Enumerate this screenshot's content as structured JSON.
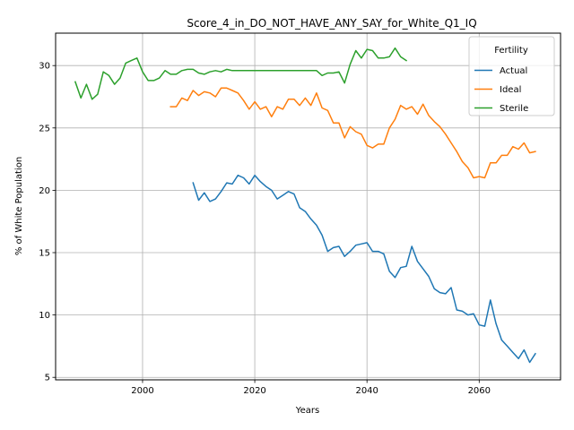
{
  "chart_data": {
    "type": "line",
    "title": "Score_4_in_DO_NOT_HAVE_ANY_SAY_for_White_Q1_IQ",
    "xlabel": "Years",
    "ylabel": "% of White Population",
    "xlim": [
      1984.5,
      2074.5
    ],
    "ylim": [
      4.8,
      32.6
    ],
    "xticks": [
      2000,
      2020,
      2040,
      2060
    ],
    "yticks": [
      5,
      10,
      15,
      20,
      25,
      30
    ],
    "grid": true,
    "legend": {
      "title": "Fertility",
      "placement": "top-right"
    },
    "series": [
      {
        "name": "Actual",
        "color": "#1f77b4",
        "x": [
          2009,
          2010,
          2011,
          2012,
          2013,
          2014,
          2015,
          2016,
          2017,
          2018,
          2019,
          2020,
          2021,
          2022,
          2023,
          2024,
          2025,
          2026,
          2027,
          2028,
          2029,
          2030,
          2031,
          2032,
          2033,
          2034,
          2035,
          2036,
          2037,
          2038,
          2039,
          2040,
          2041,
          2042,
          2043,
          2044,
          2045,
          2046,
          2047,
          2048,
          2049,
          2050,
          2051,
          2052,
          2053,
          2054,
          2055,
          2056,
          2057,
          2058,
          2059,
          2060,
          2061,
          2062,
          2063,
          2064,
          2065,
          2066,
          2067,
          2068,
          2069,
          2070
        ],
        "y": [
          20.6,
          19.2,
          19.8,
          19.1,
          19.3,
          19.9,
          20.6,
          20.5,
          21.2,
          21.0,
          20.5,
          21.2,
          20.7,
          20.3,
          20.0,
          19.3,
          19.6,
          19.9,
          19.7,
          18.6,
          18.3,
          17.7,
          17.2,
          16.4,
          15.1,
          15.4,
          15.5,
          14.7,
          15.1,
          15.6,
          15.7,
          15.8,
          15.1,
          15.1,
          14.9,
          13.5,
          13.0,
          13.8,
          13.9,
          15.5,
          14.3,
          13.7,
          13.1,
          12.1,
          11.8,
          11.7,
          12.2,
          10.4,
          10.3,
          10.0,
          10.1,
          9.2,
          9.1,
          11.2,
          9.3,
          8.0,
          7.5,
          7.0,
          6.5,
          7.2,
          6.2,
          6.9
        ]
      },
      {
        "name": "Ideal",
        "color": "#ff7f0e",
        "x": [
          2005,
          2006,
          2007,
          2008,
          2009,
          2010,
          2011,
          2012,
          2013,
          2014,
          2015,
          2016,
          2017,
          2018,
          2019,
          2020,
          2021,
          2022,
          2023,
          2024,
          2025,
          2026,
          2027,
          2028,
          2029,
          2030,
          2031,
          2032,
          2033,
          2034,
          2035,
          2036,
          2037,
          2038,
          2039,
          2040,
          2041,
          2042,
          2043,
          2044,
          2045,
          2046,
          2047,
          2048,
          2049,
          2050,
          2051,
          2052,
          2053,
          2054,
          2055,
          2056,
          2057,
          2058,
          2059,
          2060,
          2061,
          2062,
          2063,
          2064,
          2065,
          2066,
          2067,
          2068,
          2069,
          2070
        ],
        "y": [
          26.7,
          26.7,
          27.4,
          27.2,
          28.0,
          27.6,
          27.9,
          27.8,
          27.5,
          28.2,
          28.2,
          28.0,
          27.8,
          27.2,
          26.5,
          27.1,
          26.5,
          26.7,
          25.9,
          26.7,
          26.5,
          27.3,
          27.3,
          26.8,
          27.4,
          26.8,
          27.8,
          26.6,
          26.4,
          25.4,
          25.4,
          24.2,
          25.1,
          24.7,
          24.5,
          23.6,
          23.4,
          23.7,
          23.7,
          25.0,
          25.7,
          26.8,
          26.5,
          26.7,
          26.1,
          26.9,
          26.0,
          25.5,
          25.1,
          24.5,
          23.8,
          23.1,
          22.3,
          21.8,
          21.0,
          21.1,
          21.0,
          22.2,
          22.2,
          22.8,
          22.8,
          23.5,
          23.3,
          23.8,
          23.0,
          23.1
        ]
      },
      {
        "name": "Sterile",
        "color": "#2ca02c",
        "x": [
          1988,
          1989,
          1990,
          1991,
          1992,
          1993,
          1994,
          1995,
          1996,
          1997,
          1998,
          1999,
          2000,
          2001,
          2002,
          2003,
          2004,
          2005,
          2006,
          2007,
          2008,
          2009,
          2010,
          2011,
          2012,
          2013,
          2014,
          2015,
          2016,
          2017,
          2018,
          2019,
          2020,
          2021,
          2022,
          2023,
          2024,
          2025,
          2026,
          2027,
          2028,
          2029,
          2030,
          2031,
          2032,
          2033,
          2034,
          2035,
          2036,
          2037,
          2038,
          2039,
          2040,
          2041,
          2042,
          2043,
          2044,
          2045,
          2046,
          2047
        ],
        "y": [
          28.7,
          27.4,
          28.5,
          27.3,
          27.7,
          29.5,
          29.2,
          28.5,
          29.0,
          30.2,
          30.4,
          30.6,
          29.5,
          28.8,
          28.8,
          29.0,
          29.6,
          29.3,
          29.3,
          29.6,
          29.7,
          29.7,
          29.4,
          29.3,
          29.5,
          29.6,
          29.5,
          29.7,
          29.6,
          29.6,
          29.6,
          29.6,
          29.6,
          29.6,
          29.6,
          29.6,
          29.6,
          29.6,
          29.6,
          29.6,
          29.6,
          29.6,
          29.6,
          29.6,
          29.2,
          29.4,
          29.4,
          29.5,
          28.6,
          30.1,
          31.2,
          30.6,
          31.3,
          31.2,
          30.6,
          30.6,
          30.7,
          31.4,
          30.7,
          30.4
        ]
      }
    ]
  }
}
